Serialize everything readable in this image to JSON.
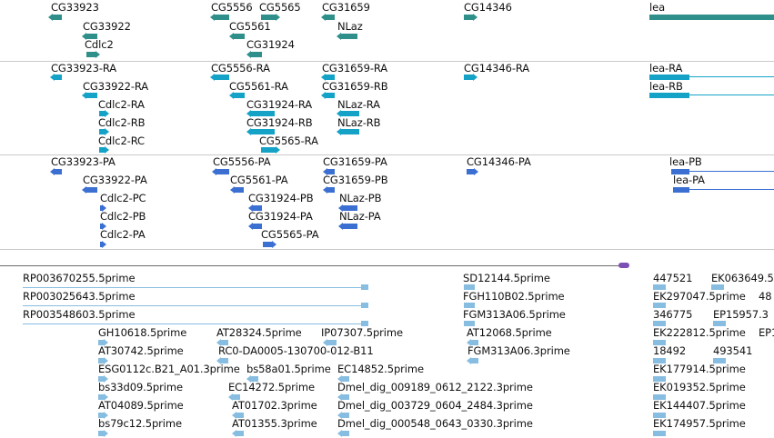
{
  "genes_track": {
    "labels": [
      "CG33923",
      "CG33922",
      "Cdlc2",
      "CG5556",
      "CG5565",
      "CG5561",
      "CG31924",
      "CG31659",
      "NLaz",
      "CG14346",
      "lea"
    ]
  },
  "transcripts_track": {
    "labels": [
      "CG33923-RA",
      "CG33922-RA",
      "Cdlc2-RA",
      "Cdlc2-RB",
      "Cdlc2-RC",
      "CG5556-RA",
      "CG5561-RA",
      "CG31924-RA",
      "CG31924-RB",
      "CG5565-RA",
      "CG31659-RA",
      "CG31659-RB",
      "NLaz-RA",
      "NLaz-RB",
      "CG14346-RA",
      "lea-RA",
      "lea-RB"
    ]
  },
  "proteins_track": {
    "labels": [
      "CG33923-PA",
      "CG33922-PA",
      "Cdlc2-PC",
      "Cdlc2-PB",
      "Cdlc2-PA",
      "CG5556-PA",
      "CG5561-PA",
      "CG31924-PB",
      "CG31924-PA",
      "CG5565-PA",
      "CG31659-PA",
      "CG31659-PB",
      "NLaz-PB",
      "NLaz-PA",
      "CG14346-PA",
      "lea-PB",
      "lea-PA"
    ]
  },
  "est_track": {
    "labels": [
      "RP003670255.5prime",
      "RP003025643.5prime",
      "RP003548603.5prime",
      "GH10618.5prime",
      "AT28324.5prime",
      "IP07307.5prime",
      "AT30742.5prime",
      "RC0-DA0005-130700-012-B11",
      "ESG0112c.B21_A01.3prime",
      "bs58a01.5prime",
      "EC14852.5prime",
      "bs33d09.5prime",
      "EC14272.5prime",
      "Dmel_dig_009189_0612_2122.3prime",
      "AT04089.5prime",
      "AT01702.3prime",
      "Dmel_dig_003729_0604_2484.3prime",
      "bs79c12.5prime",
      "AT01355.3prime",
      "Dmel_dig_000548_0643_0330.3prime",
      "SD12144.5prime",
      "FGH110B02.5prime",
      "FGM313A06.5prime",
      "AT12068.5prime",
      "FGM313A06.3prime",
      "447521",
      "EK063649.5",
      "EK297047.5prime",
      "48",
      "346775",
      "EP15957.3",
      "EK222812.5prime",
      "EP1",
      "18492",
      "493541",
      "EK177914.5prime",
      "EK019352.5prime",
      "EK144407.5prime",
      "EK174957.5prime"
    ]
  }
}
